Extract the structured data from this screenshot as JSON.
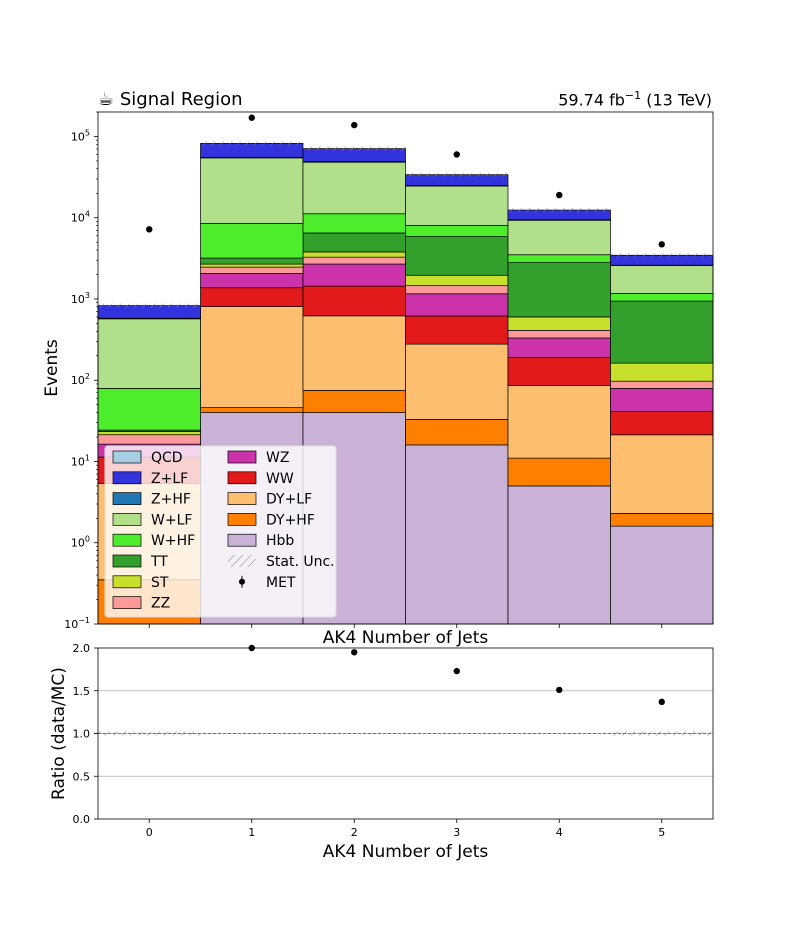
{
  "chart_data": [
    {
      "type": "bar",
      "stacked": true,
      "title": "Signal Region",
      "title_icon": "coffee-icon",
      "lumi_label": "59.74 fb",
      "lumi_sup": "−1",
      "energy_label": "(13 TeV)",
      "xlabel": "AK4 Number of Jets",
      "ylabel": "Events",
      "yscale": "log",
      "ylim": [
        0.1,
        200000
      ],
      "xlim": [
        -0.5,
        5.5
      ],
      "categories": [
        "0",
        "1",
        "2",
        "3",
        "4",
        "5"
      ],
      "yticks": [
        {
          "base": "10",
          "exp": "−1",
          "value": 0.1
        },
        {
          "base": "10",
          "exp": "0",
          "value": 1
        },
        {
          "base": "10",
          "exp": "1",
          "value": 10
        },
        {
          "base": "10",
          "exp": "2",
          "value": 100
        },
        {
          "base": "10",
          "exp": "3",
          "value": 1000
        },
        {
          "base": "10",
          "exp": "4",
          "value": 10000
        },
        {
          "base": "10",
          "exp": "5",
          "value": 100000
        }
      ],
      "series": [
        {
          "name": "Hbb",
          "color": "#cab2d6",
          "values": [
            0.1,
            40,
            40,
            16,
            5,
            1.6
          ]
        },
        {
          "name": "DY+HF",
          "color": "#ff7f00",
          "values": [
            0.25,
            6,
            35,
            17,
            6,
            0.7
          ]
        },
        {
          "name": "DY+LF",
          "color": "#fdbf6f",
          "values": [
            5,
            760,
            545,
            245,
            75,
            19
          ]
        },
        {
          "name": "WW",
          "color": "#e31a1c",
          "values": [
            6,
            570,
            820,
            340,
            105,
            20
          ]
        },
        {
          "name": "WZ",
          "color": "#cc33aa",
          "values": [
            5,
            690,
            1250,
            540,
            140,
            38
          ]
        },
        {
          "name": "ZZ",
          "color": "#fb9a99",
          "values": [
            5,
            400,
            580,
            300,
            80,
            18
          ]
        },
        {
          "name": "ST",
          "color": "#c8e02b",
          "values": [
            2,
            220,
            520,
            500,
            190,
            65
          ]
        },
        {
          "name": "TT",
          "color": "#33a02c",
          "values": [
            1,
            500,
            2700,
            3900,
            2200,
            780
          ]
        },
        {
          "name": "W+HF",
          "color": "#4ded2b",
          "values": [
            55,
            5300,
            4700,
            2200,
            700,
            230
          ]
        },
        {
          "name": "W+LF",
          "color": "#b2df8a",
          "values": [
            490,
            46000,
            37000,
            16500,
            5800,
            1400
          ]
        },
        {
          "name": "Z+HF",
          "color": "#1f78b4",
          "values": [
            10,
            700,
            700,
            300,
            120,
            30
          ]
        },
        {
          "name": "Z+LF",
          "color": "#3333dd",
          "values": [
            250,
            27000,
            22000,
            9000,
            3000,
            850
          ]
        },
        {
          "name": "QCD",
          "color": "#a6cee3",
          "values": [
            0,
            0,
            0,
            0,
            0,
            0
          ]
        }
      ],
      "data_points": {
        "name": "MET",
        "color": "#000000",
        "x": [
          0,
          1,
          2,
          3,
          4,
          5
        ],
        "y": [
          7200,
          170000,
          138000,
          60000,
          19000,
          4700
        ]
      },
      "uncertainty": {
        "name": "Stat. Unc."
      },
      "legend": {
        "position": "lower-left",
        "columns": [
          [
            "QCD",
            "Z+LF",
            "Z+HF",
            "W+LF",
            "W+HF",
            "TT",
            "ST",
            "ZZ"
          ],
          [
            "WZ",
            "WW",
            "DY+LF",
            "DY+HF",
            "Hbb",
            "Stat. Unc.",
            "MET"
          ]
        ]
      },
      "grid": false
    },
    {
      "type": "scatter",
      "xlabel": "AK4 Number of Jets",
      "ylabel": "Ratio (data/MC)",
      "ylim": [
        0,
        2
      ],
      "xlim": [
        -0.5,
        5.5
      ],
      "yticks": [
        "0.0",
        "0.5",
        "1.0",
        "1.5",
        "2.0"
      ],
      "xticks": [
        "0",
        "1",
        "2",
        "3",
        "4",
        "5"
      ],
      "grid": true,
      "points": {
        "x": [
          1,
          2,
          3,
          4,
          5
        ],
        "y": [
          2.0,
          1.95,
          1.73,
          1.51,
          1.37
        ]
      }
    }
  ]
}
